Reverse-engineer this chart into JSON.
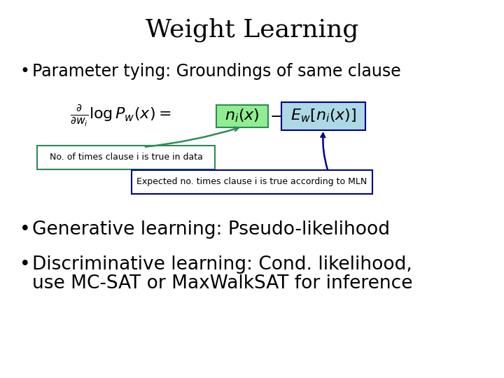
{
  "title": "Weight Learning",
  "title_fontsize": 26,
  "background_color": "#ffffff",
  "bullet1": "Parameter tying: Groundings of same clause",
  "bullet1_fontsize": 17,
  "formula_fontsize": 16,
  "ni_box_color": "#90EE90",
  "ni_box_edgecolor": "#2e8b57",
  "Ew_box_color": "#add8e6",
  "Ew_box_edgecolor": "#00008b",
  "label1_text": "No. of times clause i is true in data",
  "label1_box_edgecolor": "#2e8b57",
  "label1_arrow_color": "#2e8b57",
  "label2_text": "Expected no. times clause i is true according to MLN",
  "label2_box_edgecolor": "#00008b",
  "label2_arrow_color": "#00008b",
  "bullet2": "Generative learning: Pseudo-likelihood",
  "bullet2_fontsize": 19,
  "bullet3a": "Discriminative learning: Cond. likelihood,",
  "bullet3b": "use MC-SAT or MaxWalkSAT for inference",
  "bullet3_fontsize": 19
}
